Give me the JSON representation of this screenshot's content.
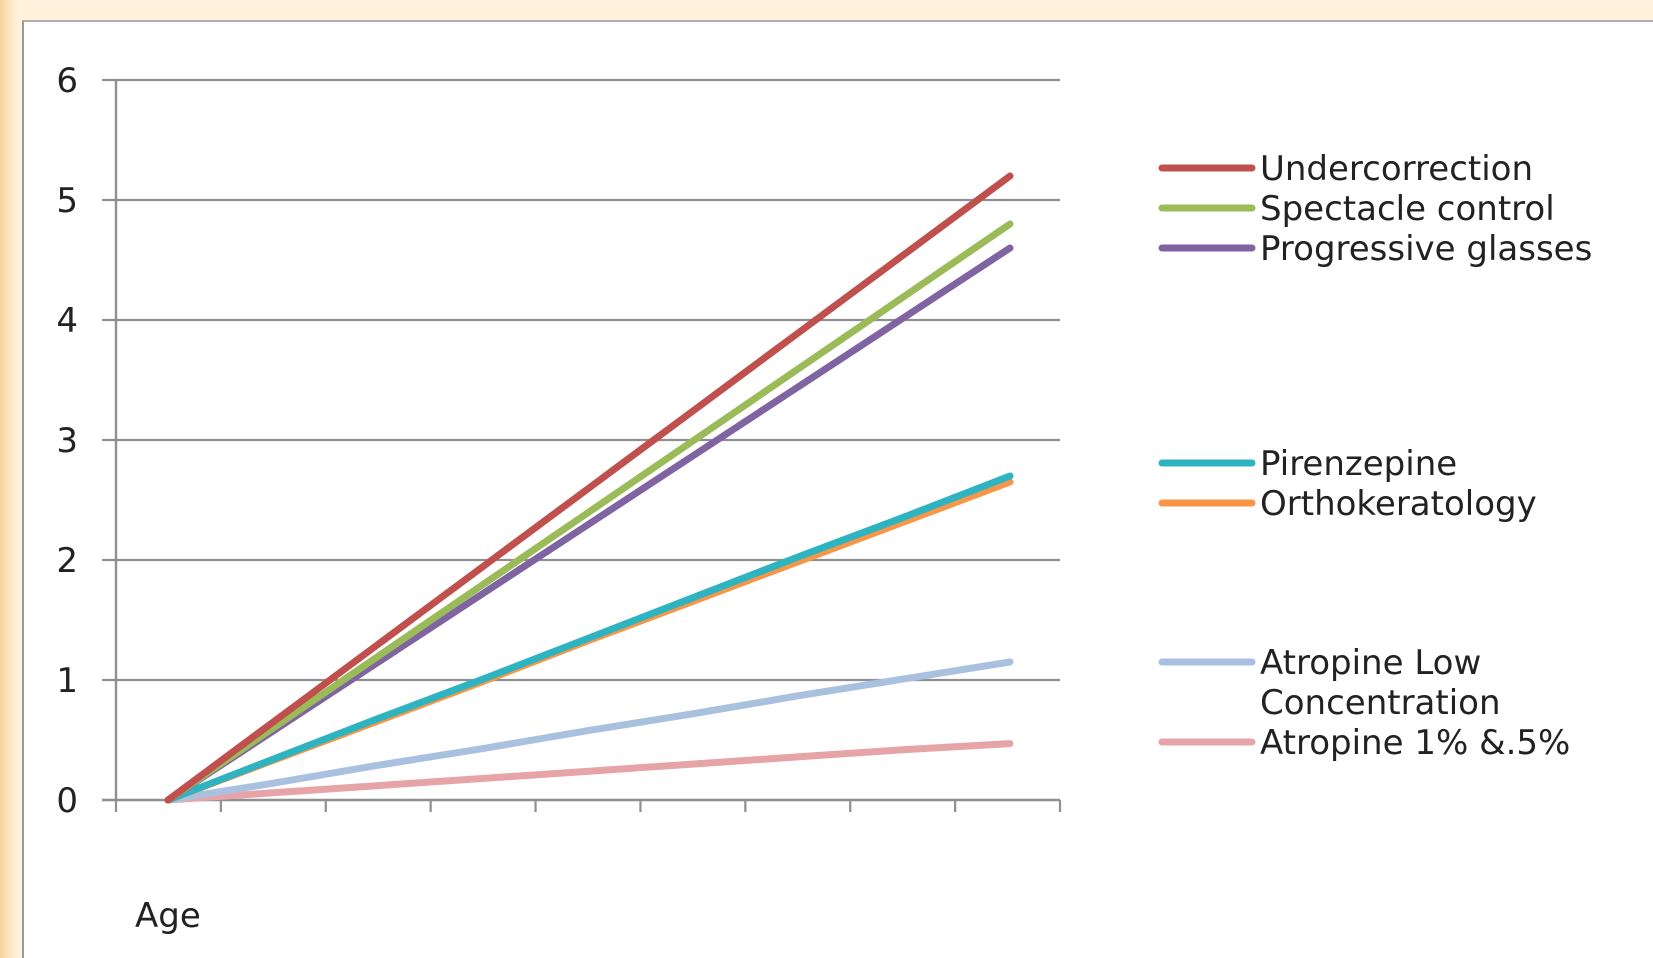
{
  "chart_data": {
    "type": "line",
    "title": "",
    "xlabel": "Age",
    "ylabel": "",
    "ylim": [
      0,
      6
    ],
    "yticks": [
      0,
      1,
      2,
      3,
      4,
      5,
      6
    ],
    "x": [
      0,
      1,
      2,
      3,
      4,
      5,
      6,
      7,
      8
    ],
    "grid": true,
    "legend_position": "right",
    "series": [
      {
        "name": "Undercorrection",
        "color": "#c0504d",
        "values": [
          0,
          0.65,
          1.3,
          1.95,
          2.6,
          3.25,
          3.9,
          4.55,
          5.2
        ]
      },
      {
        "name": "Spectacle control",
        "color": "#9bbb59",
        "values": [
          0,
          0.6,
          1.2,
          1.8,
          2.4,
          3.0,
          3.6,
          4.2,
          4.8
        ]
      },
      {
        "name": "Progressive glasses",
        "color": "#8064a2",
        "values": [
          0,
          0.575,
          1.15,
          1.725,
          2.3,
          2.875,
          3.45,
          4.025,
          4.6
        ]
      },
      {
        "name": "Pirenzepine",
        "color": "#2eb3c1",
        "values": [
          0,
          0.34,
          0.68,
          1.01,
          1.35,
          1.69,
          2.03,
          2.36,
          2.7
        ]
      },
      {
        "name": "Orthokeratology",
        "color": "#f79646",
        "values": [
          0,
          0.33,
          0.66,
          0.99,
          1.33,
          1.66,
          1.99,
          2.32,
          2.65
        ]
      },
      {
        "name": "Atropine Low Concentration",
        "color": "#a9c1df",
        "values": [
          0,
          0.14,
          0.29,
          0.43,
          0.58,
          0.72,
          0.87,
          1.01,
          1.15
        ]
      },
      {
        "name": "Atropine 1% &.5%",
        "color": "#e6a3a8",
        "values": [
          0,
          0.06,
          0.12,
          0.18,
          0.24,
          0.3,
          0.36,
          0.42,
          0.47
        ]
      }
    ],
    "legend_groups": [
      [
        "Undercorrection",
        "Spectacle control",
        "Progressive glasses"
      ],
      [
        "Pirenzepine",
        "Orthokeratology"
      ],
      [
        "Atropine Low Concentration",
        "Atropine 1% &.5%"
      ]
    ],
    "legend_line_breaks": {
      "Atropine Low Concentration": [
        "Atropine Low",
        "Concentration"
      ]
    }
  }
}
